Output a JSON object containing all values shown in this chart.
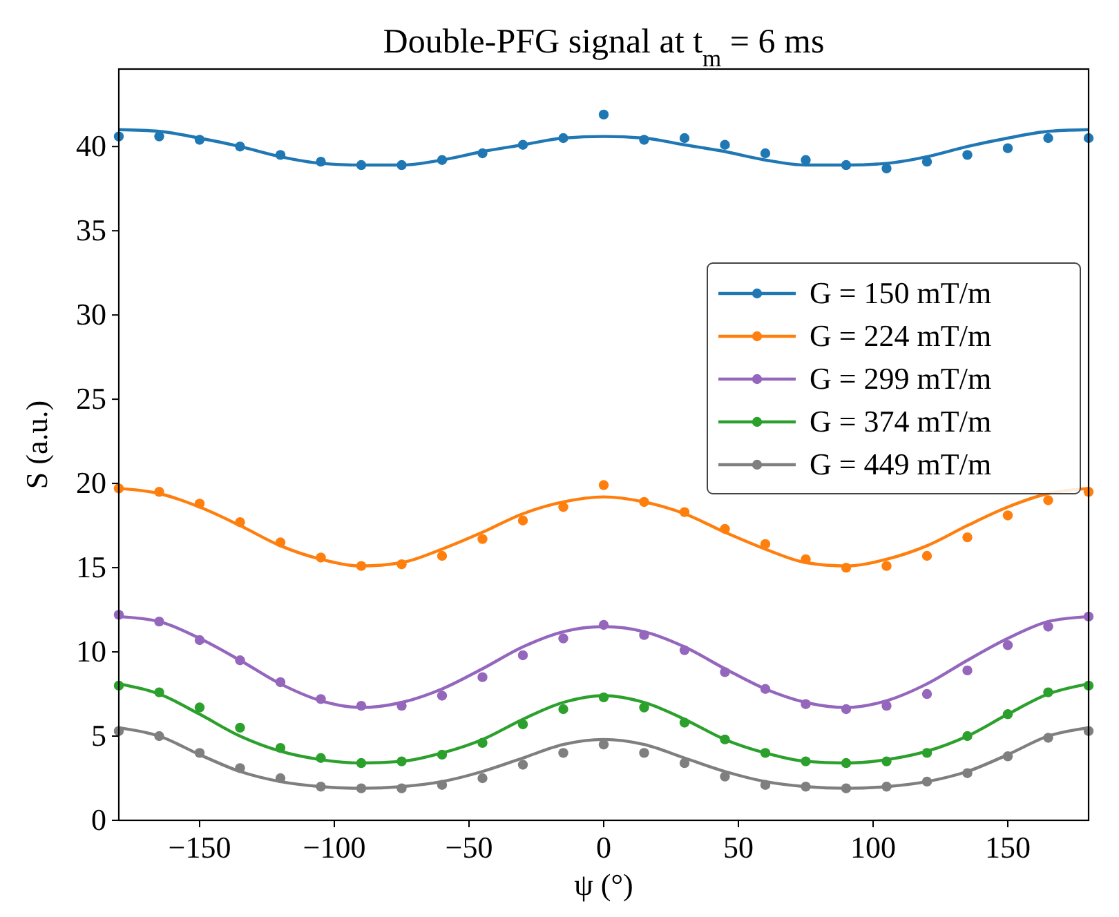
{
  "chart_data": {
    "type": "scatter",
    "title": "Double-PFG signal at t$_{m}$ = 6 ms",
    "xlabel": "ψ (°)",
    "ylabel": "S (a.u.)",
    "x": [
      -180,
      -165,
      -150,
      -135,
      -120,
      -105,
      -90,
      -75,
      -60,
      -45,
      -30,
      -15,
      0,
      15,
      30,
      45,
      60,
      75,
      90,
      105,
      120,
      135,
      150,
      165,
      180
    ],
    "xlim": [
      -180,
      180
    ],
    "xticks": [
      -150,
      -100,
      -50,
      0,
      50,
      100,
      150
    ],
    "ylim": [
      0,
      44.6
    ],
    "yticks": [
      0,
      5,
      10,
      15,
      20,
      25,
      30,
      35,
      40
    ],
    "grid": false,
    "legend": "right",
    "series": [
      {
        "name": "G = 150 mT/m",
        "color": "#1f77b4",
        "marker": "circle",
        "values": [
          40.6,
          40.6,
          40.4,
          40.0,
          39.5,
          39.1,
          38.9,
          38.9,
          39.2,
          39.6,
          40.1,
          40.5,
          41.9,
          40.4,
          40.5,
          40.1,
          39.6,
          39.2,
          38.9,
          38.7,
          39.1,
          39.5,
          39.9,
          40.5,
          40.5
        ]
      },
      {
        "name": "G = 224 mT/m",
        "color": "#ff7f0e",
        "marker": "circle",
        "values": [
          19.7,
          19.5,
          18.8,
          17.7,
          16.5,
          15.6,
          15.1,
          15.2,
          15.7,
          16.7,
          17.8,
          18.6,
          19.9,
          18.9,
          18.3,
          17.3,
          16.4,
          15.5,
          15.0,
          15.1,
          15.7,
          16.8,
          18.1,
          19.0,
          19.5
        ]
      },
      {
        "name": "G = 299 mT/m",
        "color": "#9467bd",
        "marker": "circle",
        "values": [
          12.2,
          11.8,
          10.7,
          9.5,
          8.2,
          7.2,
          6.8,
          6.8,
          7.4,
          8.5,
          9.8,
          10.8,
          11.6,
          11.0,
          10.1,
          8.8,
          7.8,
          6.9,
          6.6,
          6.8,
          7.5,
          8.9,
          10.4,
          11.5,
          12.1
        ]
      },
      {
        "name": "G = 374 mT/m",
        "color": "#2ca02c",
        "marker": "circle",
        "values": [
          8.0,
          7.6,
          6.7,
          5.5,
          4.3,
          3.7,
          3.4,
          3.5,
          3.9,
          4.6,
          5.7,
          6.6,
          7.3,
          6.7,
          5.8,
          4.8,
          4.0,
          3.5,
          3.4,
          3.5,
          4.0,
          5.0,
          6.3,
          7.6,
          8.0
        ]
      },
      {
        "name": "G = 449 mT/m",
        "color": "#7f7f7f",
        "marker": "circle",
        "values": [
          5.3,
          5.0,
          4.0,
          3.1,
          2.5,
          2.0,
          1.9,
          1.9,
          2.1,
          2.5,
          3.3,
          4.0,
          4.5,
          4.0,
          3.4,
          2.6,
          2.1,
          2.0,
          1.9,
          2.0,
          2.3,
          2.8,
          3.8,
          4.9,
          5.3
        ]
      },
      {
        "type": "line",
        "color": "#1f77b4",
        "marker": "none",
        "values": [
          41.0,
          40.9,
          40.5,
          40.0,
          39.4,
          39.0,
          38.9,
          38.9,
          39.2,
          39.7,
          40.1,
          40.5,
          40.6,
          40.5,
          40.1,
          39.7,
          39.2,
          38.9,
          38.9,
          39.0,
          39.4,
          40.0,
          40.5,
          40.9,
          41.0
        ]
      },
      {
        "type": "line",
        "color": "#ff7f0e",
        "marker": "none",
        "values": [
          19.7,
          19.4,
          18.6,
          17.5,
          16.3,
          15.5,
          15.1,
          15.3,
          16.1,
          17.1,
          18.2,
          18.9,
          19.2,
          18.9,
          18.2,
          17.1,
          16.1,
          15.3,
          15.1,
          15.5,
          16.3,
          17.5,
          18.6,
          19.4,
          19.7
        ]
      },
      {
        "type": "line",
        "color": "#9467bd",
        "marker": "none",
        "values": [
          12.1,
          11.8,
          10.8,
          9.5,
          8.1,
          7.1,
          6.7,
          7.0,
          7.8,
          9.0,
          10.3,
          11.2,
          11.5,
          11.2,
          10.3,
          9.0,
          7.8,
          7.0,
          6.7,
          7.1,
          8.1,
          9.5,
          10.8,
          11.8,
          12.1
        ]
      },
      {
        "type": "line",
        "color": "#2ca02c",
        "marker": "none",
        "values": [
          8.1,
          7.5,
          6.3,
          5.0,
          4.1,
          3.6,
          3.4,
          3.5,
          4.0,
          4.8,
          6.0,
          7.0,
          7.4,
          7.0,
          6.0,
          4.8,
          4.0,
          3.5,
          3.4,
          3.6,
          4.1,
          5.0,
          6.3,
          7.5,
          8.1
        ]
      },
      {
        "type": "line",
        "color": "#7f7f7f",
        "marker": "none",
        "values": [
          5.5,
          5.0,
          3.9,
          2.9,
          2.3,
          2.0,
          1.9,
          2.0,
          2.3,
          2.9,
          3.7,
          4.5,
          4.8,
          4.5,
          3.7,
          2.9,
          2.3,
          2.0,
          1.9,
          2.0,
          2.3,
          2.9,
          3.9,
          5.0,
          5.5
        ]
      }
    ]
  }
}
